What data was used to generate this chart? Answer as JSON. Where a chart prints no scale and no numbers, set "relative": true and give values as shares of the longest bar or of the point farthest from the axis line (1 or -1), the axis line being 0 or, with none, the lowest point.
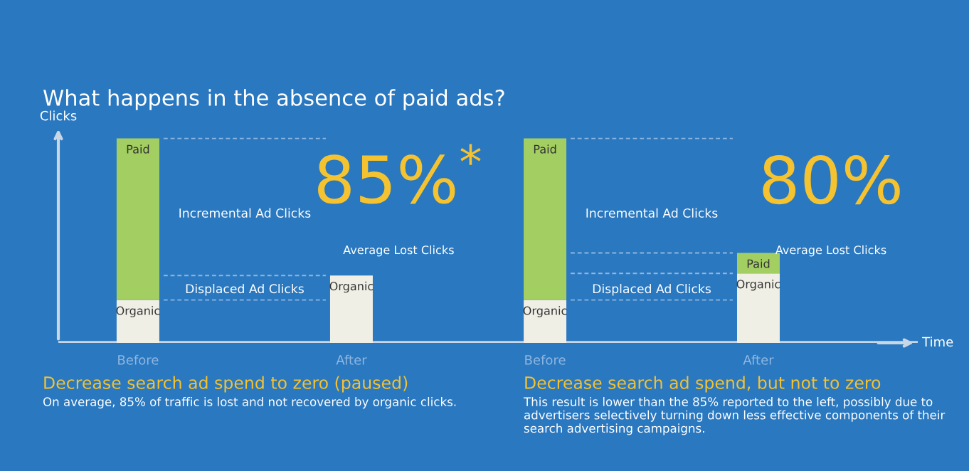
{
  "chart_data": [
    {
      "type": "bar",
      "title": "What happens in the absence of paid ads?",
      "subtitle": "Decrease search ad spend to zero (paused)",
      "ylabel": "Clicks",
      "relative": true,
      "stacked": true,
      "legend": false,
      "grid": false,
      "categories": [
        "Before",
        "After"
      ],
      "series": [
        {
          "name": "Organic",
          "color": "#f0efe6",
          "values": [
            0.21,
            0.33
          ]
        },
        {
          "name": "Paid",
          "color": "#a3cf62",
          "values": [
            0.79,
            null
          ]
        }
      ],
      "ref_lines": [
        {
          "axis": "y",
          "value": 1,
          "line_style": "dashed"
        },
        {
          "axis": "y",
          "value": 0.33,
          "line_style": "dashed"
        },
        {
          "axis": "y",
          "value": 0.21,
          "line_style": "dashed"
        }
      ],
      "annotations": [
        "Incremental Ad Clicks",
        "Displaced Ad Clicks",
        "85%$^{*}$",
        "Average Lost Clicks",
        "On average, 85% of traffic is lost and not recovered by organic clicks."
      ]
    },
    {
      "type": "bar",
      "subtitle": "Decrease search ad spend, but not to zero",
      "xlabel": "Time",
      "relative": true,
      "stacked": true,
      "legend": false,
      "grid": false,
      "categories": [
        "Before",
        "After"
      ],
      "series": [
        {
          "name": "Organic",
          "color": "#f0efe6",
          "values": [
            0.21,
            0.34
          ]
        },
        {
          "name": "Paid",
          "color": "#a3cf62",
          "values": [
            0.79,
            0.1
          ]
        }
      ],
      "ref_lines": [
        {
          "axis": "y",
          "value": 1,
          "line_style": "dashed"
        },
        {
          "axis": "y",
          "value": 0.44,
          "line_style": "dashed"
        },
        {
          "axis": "y",
          "value": 0.34,
          "line_style": "dashed"
        },
        {
          "axis": "y",
          "value": 0.21,
          "line_style": "dashed"
        }
      ],
      "annotations": [
        "Incremental Ad Clicks",
        "Displaced Ad Clicks",
        "80%",
        "Average Lost Clicks",
        "This result is lower than the 85% reported to the left, possibly due to advertisers selectively turning down less effective components of their search advertising campaigns."
      ]
    }
  ]
}
